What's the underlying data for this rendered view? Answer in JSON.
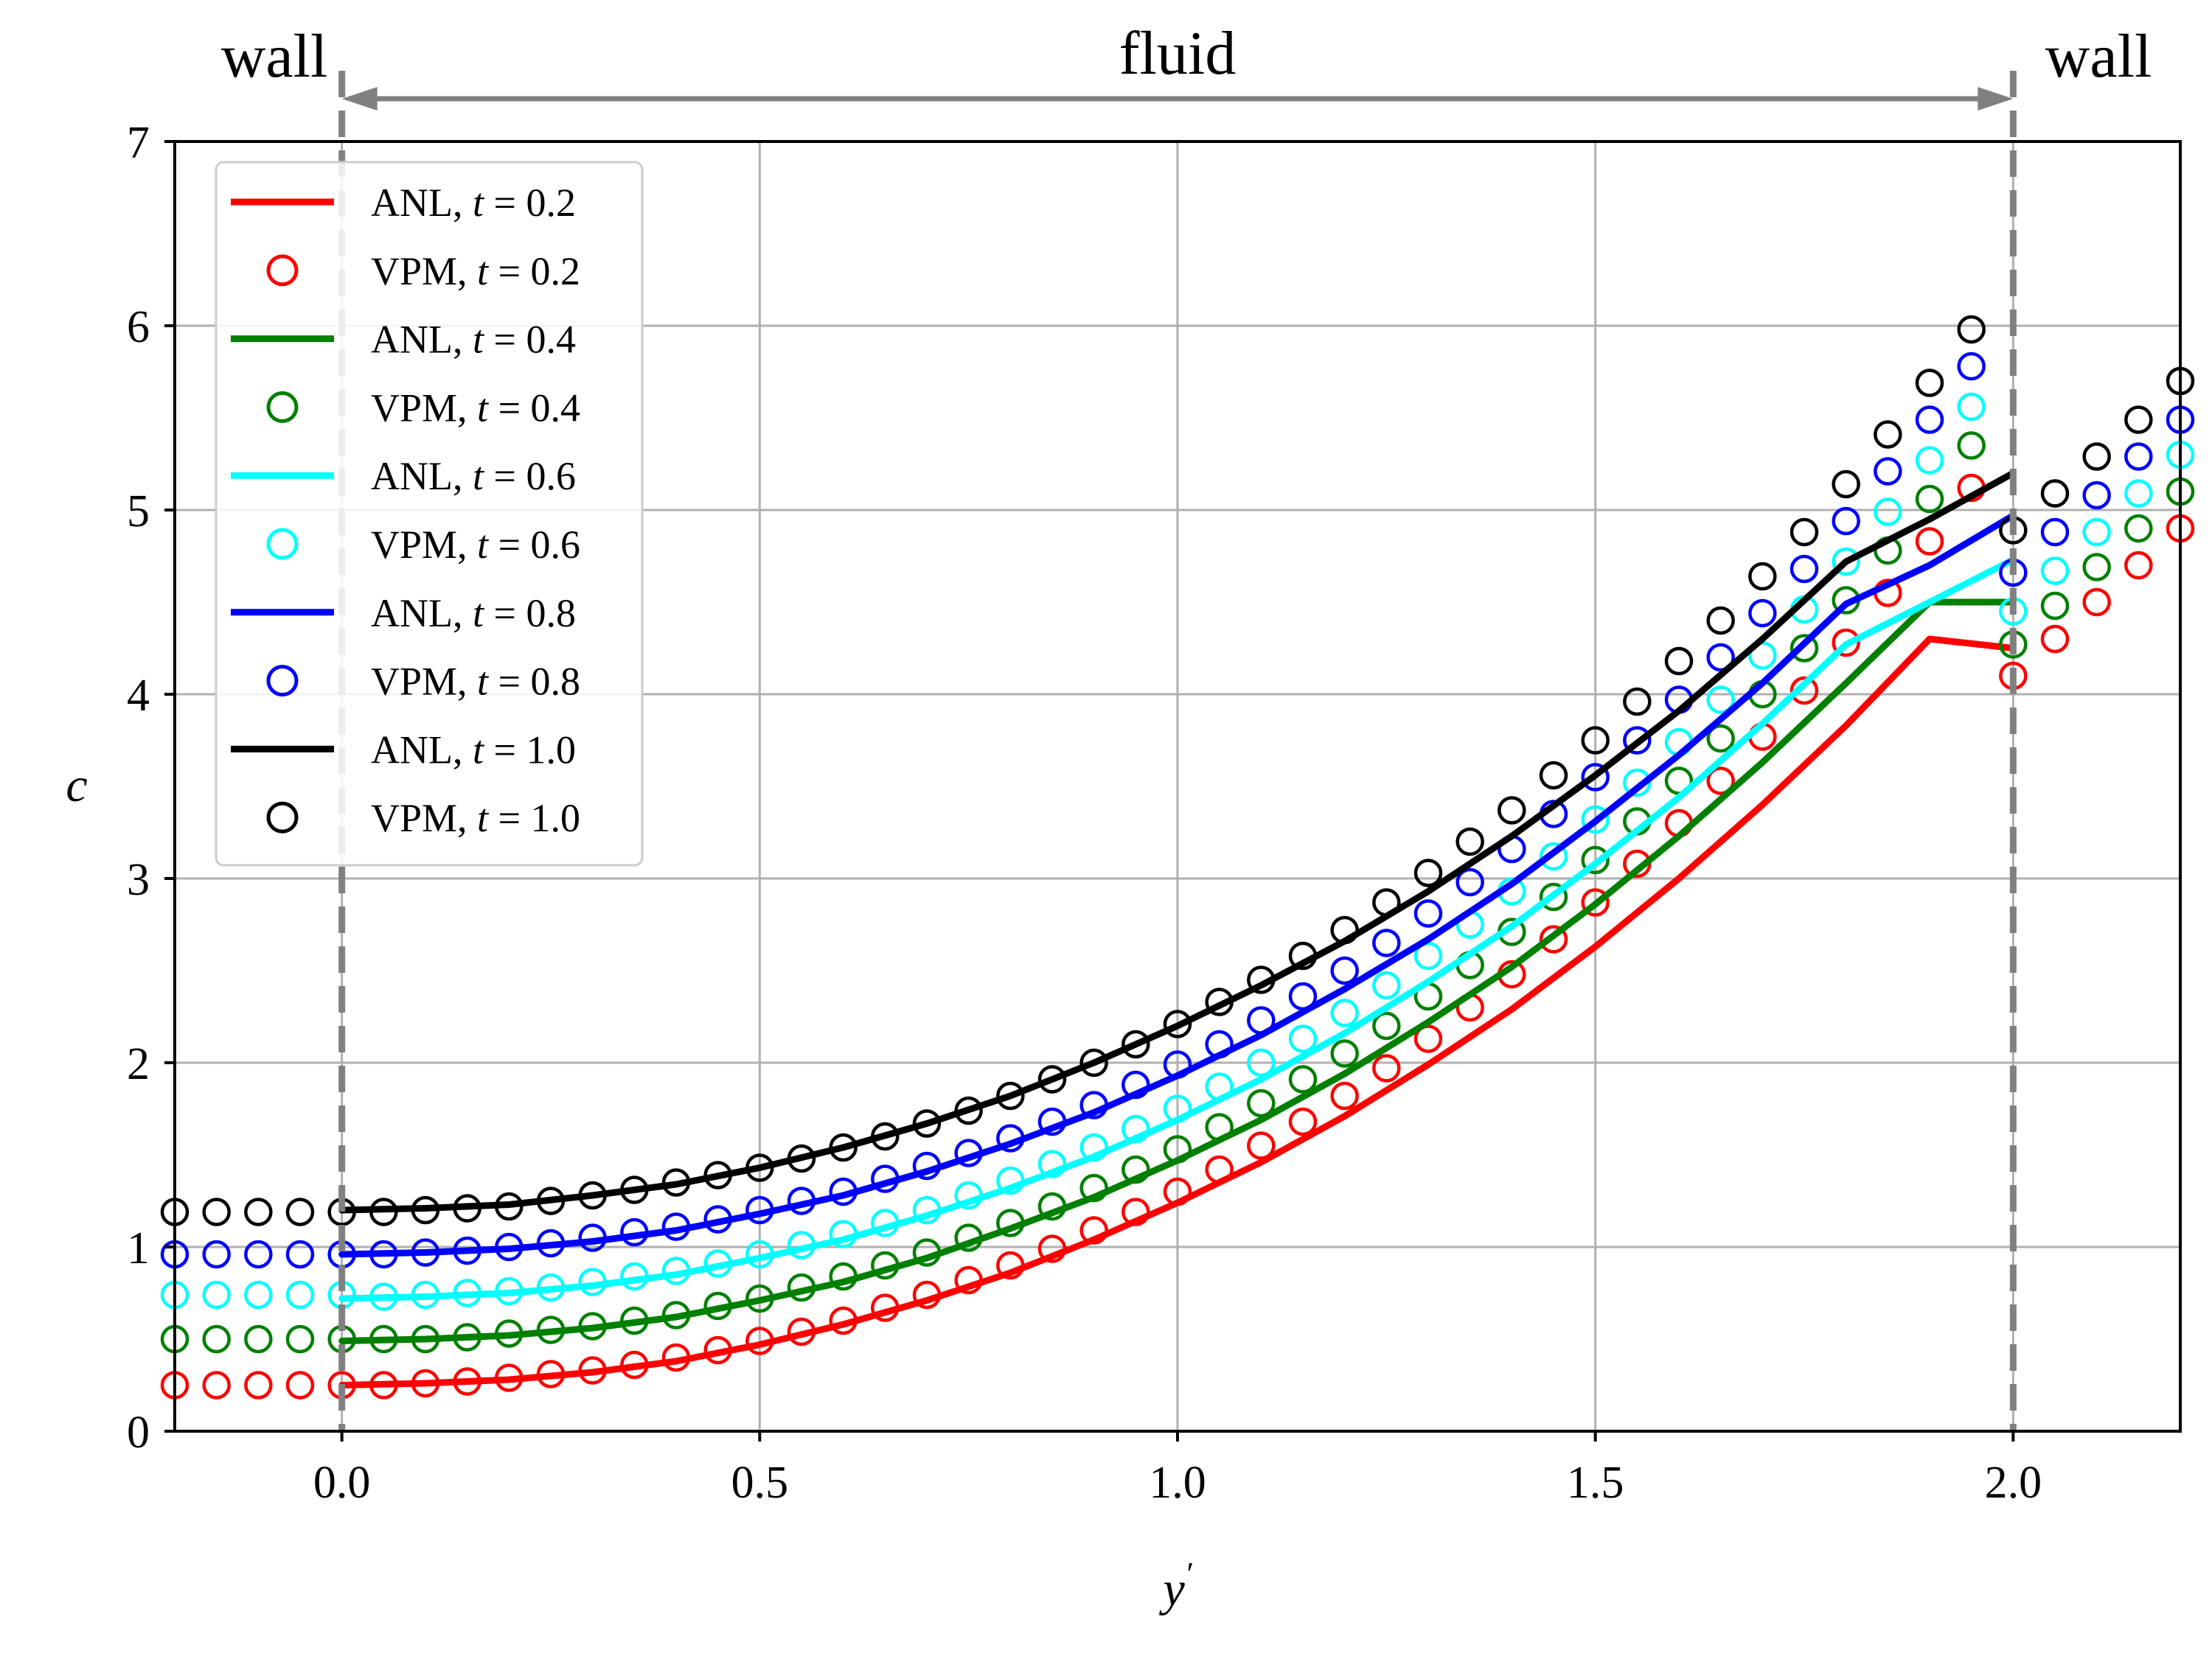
{
  "chart_data": {
    "type": "line",
    "xlabel": "y",
    "xlabel_prime": "′",
    "ylabel": "c",
    "xlim": [
      -0.2,
      2.2
    ],
    "ylim": [
      0,
      7
    ],
    "xticks": [
      0.0,
      0.5,
      1.0,
      1.5,
      2.0
    ],
    "xtick_labels": [
      "0.0",
      "0.5",
      "1.0",
      "1.5",
      "2.0"
    ],
    "yticks": [
      0,
      1,
      2,
      3,
      4,
      5,
      6,
      7
    ],
    "ytick_labels": [
      "0",
      "1",
      "2",
      "3",
      "4",
      "5",
      "6",
      "7"
    ],
    "grid": true,
    "legend_position": "top-left",
    "walls": [
      0.0,
      2.0
    ],
    "region_labels": {
      "left": "wall",
      "middle": "fluid",
      "right": "wall"
    },
    "anl_x": [
      0.0,
      0.1,
      0.2,
      0.3,
      0.4,
      0.5,
      0.6,
      0.7,
      0.8,
      0.9,
      1.0,
      1.1,
      1.2,
      1.3,
      1.4,
      1.5,
      1.6,
      1.7,
      1.8,
      1.9,
      2.0
    ],
    "vpm_x": [
      -0.2,
      -0.15,
      -0.1,
      -0.05,
      0.0,
      0.05,
      0.1,
      0.15,
      0.2,
      0.25,
      0.3,
      0.35,
      0.4,
      0.45,
      0.5,
      0.55,
      0.6,
      0.65,
      0.7,
      0.75,
      0.8,
      0.85,
      0.9,
      0.95,
      1.0,
      1.05,
      1.1,
      1.15,
      1.2,
      1.25,
      1.3,
      1.35,
      1.4,
      1.45,
      1.5,
      1.55,
      1.6,
      1.65,
      1.7,
      1.75,
      1.8,
      1.85,
      1.9,
      1.95,
      2.0,
      2.05,
      2.1,
      2.15,
      2.2
    ],
    "series": [
      {
        "name": "ANL",
        "t": "0.2",
        "kind": "line",
        "color": "#ff0000",
        "y": [
          0.25,
          0.26,
          0.28,
          0.32,
          0.38,
          0.47,
          0.58,
          0.71,
          0.86,
          1.04,
          1.24,
          1.46,
          1.71,
          1.99,
          2.29,
          2.63,
          3.0,
          3.4,
          3.83,
          4.3,
          4.25
        ]
      },
      {
        "name": "VPM",
        "t": "0.2",
        "kind": "marker",
        "color": "#ff0000",
        "y": [
          0.25,
          0.25,
          0.25,
          0.25,
          0.25,
          0.25,
          0.26,
          0.27,
          0.29,
          0.31,
          0.33,
          0.36,
          0.4,
          0.44,
          0.49,
          0.54,
          0.6,
          0.67,
          0.74,
          0.82,
          0.9,
          0.99,
          1.09,
          1.19,
          1.3,
          1.42,
          1.55,
          1.68,
          1.82,
          1.97,
          2.13,
          2.3,
          2.48,
          2.67,
          2.87,
          3.08,
          3.3,
          3.53,
          3.77,
          4.02,
          4.28,
          4.55,
          4.83,
          5.12,
          4.1,
          4.3,
          4.5,
          4.7,
          4.9
        ]
      },
      {
        "name": "ANL",
        "t": "0.4",
        "kind": "line",
        "color": "#008000",
        "y": [
          0.49,
          0.5,
          0.52,
          0.56,
          0.62,
          0.71,
          0.81,
          0.94,
          1.1,
          1.27,
          1.47,
          1.69,
          1.94,
          2.22,
          2.52,
          2.86,
          3.23,
          3.63,
          4.06,
          4.5,
          4.5
        ]
      },
      {
        "name": "VPM",
        "t": "0.4",
        "kind": "marker",
        "color": "#008000",
        "y": [
          0.5,
          0.5,
          0.5,
          0.5,
          0.5,
          0.5,
          0.5,
          0.51,
          0.53,
          0.55,
          0.57,
          0.6,
          0.63,
          0.68,
          0.72,
          0.78,
          0.84,
          0.9,
          0.97,
          1.05,
          1.13,
          1.22,
          1.32,
          1.42,
          1.53,
          1.65,
          1.78,
          1.91,
          2.05,
          2.2,
          2.36,
          2.53,
          2.71,
          2.9,
          3.1,
          3.31,
          3.53,
          3.76,
          4.0,
          4.25,
          4.51,
          4.78,
          5.06,
          5.35,
          4.27,
          4.48,
          4.69,
          4.9,
          5.1
        ]
      },
      {
        "name": "ANL",
        "t": "0.6",
        "kind": "line",
        "color": "#00ffff",
        "y": [
          0.72,
          0.73,
          0.75,
          0.79,
          0.85,
          0.94,
          1.04,
          1.17,
          1.32,
          1.49,
          1.69,
          1.91,
          2.16,
          2.44,
          2.74,
          3.08,
          3.44,
          3.84,
          4.27,
          4.5,
          4.73
        ]
      },
      {
        "name": "VPM",
        "t": "0.6",
        "kind": "marker",
        "color": "#00ffff",
        "y": [
          0.74,
          0.74,
          0.74,
          0.74,
          0.74,
          0.73,
          0.74,
          0.75,
          0.76,
          0.78,
          0.81,
          0.84,
          0.87,
          0.91,
          0.96,
          1.01,
          1.07,
          1.13,
          1.2,
          1.28,
          1.36,
          1.45,
          1.54,
          1.64,
          1.75,
          1.87,
          2.0,
          2.13,
          2.27,
          2.42,
          2.58,
          2.75,
          2.93,
          3.12,
          3.32,
          3.52,
          3.74,
          3.97,
          4.21,
          4.46,
          4.72,
          4.99,
          5.27,
          5.56,
          4.45,
          4.67,
          4.88,
          5.09,
          5.3
        ]
      },
      {
        "name": "ANL",
        "t": "0.8",
        "kind": "line",
        "color": "#0000ff",
        "y": [
          0.96,
          0.97,
          0.99,
          1.03,
          1.09,
          1.18,
          1.28,
          1.41,
          1.56,
          1.73,
          1.93,
          2.15,
          2.4,
          2.67,
          2.97,
          3.31,
          3.67,
          4.06,
          4.49,
          4.7,
          4.97
        ]
      },
      {
        "name": "VPM",
        "t": "0.8",
        "kind": "marker",
        "color": "#0000ff",
        "y": [
          0.96,
          0.96,
          0.96,
          0.96,
          0.96,
          0.96,
          0.97,
          0.98,
          1.0,
          1.02,
          1.05,
          1.08,
          1.11,
          1.15,
          1.2,
          1.25,
          1.3,
          1.37,
          1.44,
          1.51,
          1.59,
          1.68,
          1.77,
          1.88,
          1.99,
          2.1,
          2.23,
          2.36,
          2.5,
          2.65,
          2.81,
          2.98,
          3.16,
          3.35,
          3.55,
          3.75,
          3.97,
          4.2,
          4.44,
          4.68,
          4.94,
          5.21,
          5.49,
          5.78,
          4.66,
          4.88,
          5.08,
          5.29,
          5.49
        ]
      },
      {
        "name": "ANL",
        "t": "1.0",
        "kind": "line",
        "color": "#000000",
        "y": [
          1.2,
          1.21,
          1.23,
          1.28,
          1.34,
          1.43,
          1.54,
          1.67,
          1.82,
          2.0,
          2.2,
          2.42,
          2.66,
          2.93,
          3.23,
          3.56,
          3.91,
          4.3,
          4.72,
          4.95,
          5.2
        ]
      },
      {
        "name": "VPM",
        "t": "1.0",
        "kind": "marker",
        "color": "#000000",
        "y": [
          1.19,
          1.19,
          1.19,
          1.19,
          1.19,
          1.19,
          1.2,
          1.21,
          1.22,
          1.25,
          1.28,
          1.31,
          1.35,
          1.39,
          1.43,
          1.48,
          1.54,
          1.6,
          1.67,
          1.74,
          1.82,
          1.91,
          2.0,
          2.1,
          2.21,
          2.33,
          2.45,
          2.58,
          2.72,
          2.87,
          3.03,
          3.2,
          3.37,
          3.56,
          3.75,
          3.96,
          4.18,
          4.4,
          4.64,
          4.88,
          5.14,
          5.41,
          5.69,
          5.98,
          4.89,
          5.09,
          5.29,
          5.49,
          5.7
        ]
      }
    ],
    "legend": [
      {
        "label": "ANL, ",
        "t_label": "t",
        "value": " = 0.2",
        "kind": "line",
        "color": "#ff0000"
      },
      {
        "label": "VPM, ",
        "t_label": "t",
        "value": " = 0.2",
        "kind": "marker",
        "color": "#ff0000"
      },
      {
        "label": "ANL, ",
        "t_label": "t",
        "value": " = 0.4",
        "kind": "line",
        "color": "#008000"
      },
      {
        "label": "VPM, ",
        "t_label": "t",
        "value": " = 0.4",
        "kind": "marker",
        "color": "#008000"
      },
      {
        "label": "ANL, ",
        "t_label": "t",
        "value": " = 0.6",
        "kind": "line",
        "color": "#00ffff"
      },
      {
        "label": "VPM, ",
        "t_label": "t",
        "value": " = 0.6",
        "kind": "marker",
        "color": "#00ffff"
      },
      {
        "label": "ANL, ",
        "t_label": "t",
        "value": " = 0.8",
        "kind": "line",
        "color": "#0000ff"
      },
      {
        "label": "VPM, ",
        "t_label": "t",
        "value": " = 0.8",
        "kind": "marker",
        "color": "#0000ff"
      },
      {
        "label": "ANL, ",
        "t_label": "t",
        "value": " = 1.0",
        "kind": "line",
        "color": "#000000"
      },
      {
        "label": "VPM, ",
        "t_label": "t",
        "value": " = 1.0",
        "kind": "marker",
        "color": "#000000"
      }
    ]
  }
}
